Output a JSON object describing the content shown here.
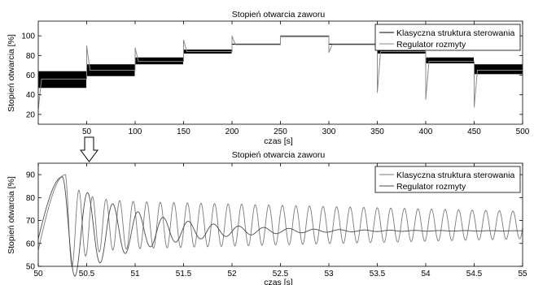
{
  "chart_data": [
    {
      "type": "line",
      "title": "Stopień otwarcia zaworu",
      "xlabel": "czas [s]",
      "ylabel": "Stopień otwarcia [%]",
      "xlim": [
        0,
        500
      ],
      "ylim": [
        10,
        115
      ],
      "xticks": [
        50,
        100,
        150,
        200,
        250,
        300,
        350,
        400,
        450,
        500
      ],
      "yticks": [
        20,
        40,
        60,
        80,
        100
      ],
      "grid": false,
      "legend_position": "top-right",
      "series": [
        {
          "name": "Klasyczna struktura sterowania",
          "color": "#000000",
          "style": "oscillating band",
          "segments": [
            {
              "t0": 0,
              "t1": 50,
              "low": 47,
              "high": 64
            },
            {
              "t0": 50,
              "t1": 100,
              "low": 59,
              "high": 71
            },
            {
              "t0": 100,
              "t1": 150,
              "low": 71,
              "high": 78
            },
            {
              "t0": 150,
              "t1": 200,
              "low": 82,
              "high": 86
            },
            {
              "t0": 200,
              "t1": 250,
              "low": 91,
              "high": 92
            },
            {
              "t0": 250,
              "t1": 300,
              "low": 99,
              "high": 100
            },
            {
              "t0": 300,
              "t1": 350,
              "low": 91,
              "high": 92
            },
            {
              "t0": 350,
              "t1": 400,
              "low": 82,
              "high": 85
            },
            {
              "t0": 400,
              "t1": 450,
              "low": 72,
              "high": 78
            },
            {
              "t0": 450,
              "t1": 500,
              "low": 61,
              "high": 71
            }
          ]
        },
        {
          "name": "Regulator rozmyty",
          "color": "#8a8a8a",
          "style": "step response",
          "levels": [
            {
              "t0": 0,
              "t1": 50,
              "value": 56,
              "transient": 25
            },
            {
              "t0": 50,
              "t1": 100,
              "value": 65,
              "transient": 90
            },
            {
              "t0": 100,
              "t1": 150,
              "value": 74,
              "transient": 88
            },
            {
              "t0": 150,
              "t1": 200,
              "value": 84,
              "transient": 96
            },
            {
              "t0": 200,
              "t1": 250,
              "value": 91,
              "transient": 100
            },
            {
              "t0": 250,
              "t1": 300,
              "value": 100,
              "transient": 100
            },
            {
              "t0": 300,
              "t1": 350,
              "value": 91,
              "transient": 83
            },
            {
              "t0": 350,
              "t1": 400,
              "value": 84,
              "transient": 42
            },
            {
              "t0": 400,
              "t1": 450,
              "value": 74,
              "transient": 35
            },
            {
              "t0": 450,
              "t1": 500,
              "value": 65,
              "transient": 27
            }
          ]
        }
      ]
    },
    {
      "type": "line",
      "title": "Stopień otwarcia zaworu",
      "xlabel": "czas [s]",
      "ylabel": "Stopień otwarcia [%]",
      "xlim": [
        50,
        55
      ],
      "ylim": [
        50,
        95
      ],
      "xticks": [
        50,
        50.5,
        51,
        51.5,
        52,
        52.5,
        53,
        53.5,
        54,
        54.5,
        55
      ],
      "yticks": [
        50,
        60,
        70,
        80,
        90
      ],
      "grid": false,
      "legend_position": "top-right",
      "series": [
        {
          "name": "Klasyczna struktura sterowania",
          "color": "#7a7a7a",
          "style": "sustained oscillation",
          "start_value": 57,
          "peak": {
            "x": 50.28,
            "y": 90
          },
          "period": 0.14,
          "mean": 68,
          "amplitude_start": 11,
          "amplitude_end": 6
        },
        {
          "name": "Regulator rozmyty",
          "color": "#4a4a4a",
          "style": "damped oscillation",
          "start_value": 62,
          "peak": {
            "x": 50.25,
            "y": 89
          },
          "period": 0.26,
          "final_value": 65.5,
          "damping": 0.75
        }
      ]
    }
  ],
  "annotation": {
    "arrow": "down-arrow",
    "points_from_x": 50
  }
}
